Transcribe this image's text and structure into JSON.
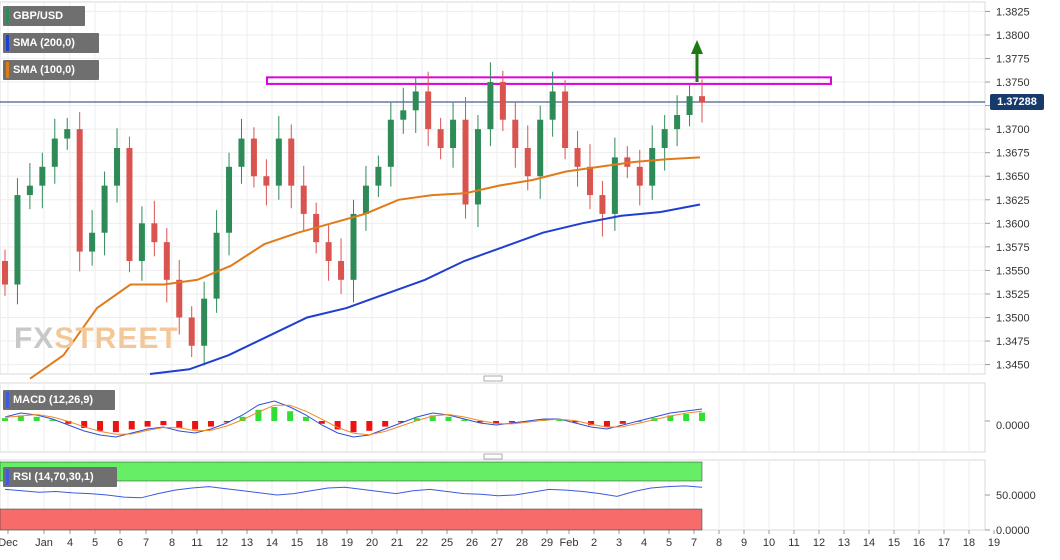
{
  "instrument": "GBP/USD",
  "indicators": {
    "sma200_label": "SMA (200,0)",
    "sma100_label": "SMA (100,0)",
    "macd_label": "MACD (12,26,9)",
    "rsi_label": "RSI (14,70,30,1)"
  },
  "current_price": "1.37288",
  "watermark": {
    "part_a": "FX",
    "part_b": "STREET"
  },
  "colors": {
    "bullish": "#2e8b57",
    "bearish": "#d9534f",
    "sma100": "#e07b1a",
    "sma200": "#1f3fd1",
    "resistance": "#e100e1",
    "arrow": "#1d7a12",
    "macd_pos": "#33dd33",
    "macd_neg": "#ee1111",
    "rsi_line": "#3c5be0",
    "overbought": "#66ee66",
    "oversold": "#f86b6b"
  },
  "chart_data": [
    {
      "type": "candlestick",
      "title": "GBP/USD",
      "x_tick_labels": [
        "Dec",
        "Jan",
        "4",
        "5",
        "6",
        "7",
        "8",
        "11",
        "12",
        "13",
        "14",
        "15",
        "18",
        "19",
        "20",
        "21",
        "22",
        "25",
        "26",
        "27",
        "28",
        "29",
        "Feb",
        "2",
        "3",
        "4",
        "5",
        "7",
        "8",
        "9",
        "10",
        "11",
        "12",
        "13",
        "14",
        "15",
        "16",
        "17",
        "18",
        "19"
      ],
      "y_ticks": [
        "1.3450",
        "1.3475",
        "1.3500",
        "1.3525",
        "1.3550",
        "1.3575",
        "1.3600",
        "1.3625",
        "1.3650",
        "1.3675",
        "1.3700",
        "1.3725",
        "1.3750",
        "1.3775",
        "1.3800",
        "1.3825"
      ],
      "ylim": [
        1.344,
        1.3835
      ],
      "candles_close_estimates": [
        1.3535,
        1.363,
        1.364,
        1.366,
        1.369,
        1.37,
        1.357,
        1.359,
        1.364,
        1.368,
        1.356,
        1.36,
        1.358,
        1.354,
        1.35,
        1.347,
        1.352,
        1.359,
        1.366,
        1.369,
        1.365,
        1.364,
        1.369,
        1.364,
        1.361,
        1.358,
        1.356,
        1.354,
        1.361,
        1.364,
        1.366,
        1.371,
        1.372,
        1.374,
        1.37,
        1.368,
        1.371,
        1.362,
        1.37,
        1.375,
        1.371,
        1.368,
        1.365,
        1.371,
        1.374,
        1.368,
        1.366,
        1.363,
        1.361,
        1.367,
        1.366,
        1.364,
        1.368,
        1.37,
        1.3715,
        1.3735,
        1.3728
      ],
      "series": [
        {
          "name": "SMA (100,0)",
          "values": [
            1.3435,
            1.346,
            1.351,
            1.3535,
            1.3535,
            1.354,
            1.3555,
            1.3578,
            1.359,
            1.36,
            1.361,
            1.3625,
            1.363,
            1.3632,
            1.364,
            1.3646,
            1.3655,
            1.366,
            1.3665,
            1.3668,
            1.367
          ]
        },
        {
          "name": "SMA (200,0)",
          "values": [
            1.344,
            1.3445,
            1.346,
            1.348,
            1.35,
            1.351,
            1.3525,
            1.354,
            1.356,
            1.3575,
            1.359,
            1.36,
            1.3608,
            1.3612,
            1.362
          ]
        }
      ],
      "annotations": [
        {
          "type": "resistance-zone",
          "from": 1.3748,
          "to": 1.3755
        },
        {
          "type": "arrow",
          "direction": "up"
        }
      ],
      "last_price": 1.37288
    },
    {
      "type": "bar",
      "title": "MACD (12,26,9)",
      "y_ticks": [
        "0.0000"
      ],
      "histogram_estimates": [
        0.2,
        0.4,
        0.3,
        0.1,
        -0.2,
        -0.5,
        -0.7,
        -0.8,
        -0.6,
        -0.4,
        -0.3,
        -0.5,
        -0.6,
        -0.4,
        -0.1,
        0.3,
        0.8,
        1.0,
        0.7,
        0.3,
        -0.2,
        -0.6,
        -0.8,
        -0.7,
        -0.4,
        -0.1,
        0.2,
        0.4,
        0.3,
        0.1,
        -0.1,
        -0.2,
        -0.1,
        0.0,
        0.1,
        0.1,
        -0.1,
        -0.3,
        -0.4,
        -0.2,
        0.0,
        0.2,
        0.4,
        0.5,
        0.6
      ]
    },
    {
      "type": "line",
      "title": "RSI (14,70,30,1)",
      "y_ticks": [
        "0.0000",
        "50.0000"
      ],
      "ylim": [
        0,
        100
      ],
      "overbought": 70,
      "oversold": 30,
      "values_estimates": [
        58,
        56,
        54,
        55,
        53,
        52,
        50,
        47,
        46,
        52,
        57,
        60,
        62,
        59,
        56,
        53,
        50,
        52,
        56,
        60,
        61,
        58,
        55,
        52,
        56,
        58,
        55,
        52,
        51,
        49,
        50,
        54,
        58,
        57,
        55,
        52,
        48,
        55,
        60,
        62,
        63,
        61
      ]
    }
  ]
}
